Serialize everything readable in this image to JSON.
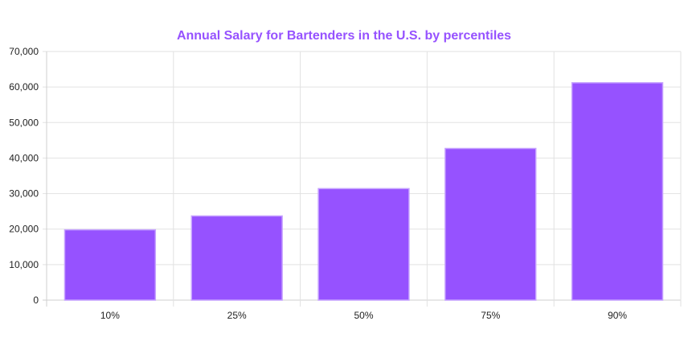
{
  "chart_data": {
    "type": "bar",
    "title": "Annual Salary for Bartenders in the U.S. by percentiles",
    "categories": [
      "10%",
      "25%",
      "50%",
      "75%",
      "90%"
    ],
    "values": [
      19800,
      23700,
      31400,
      42700,
      61200
    ],
    "y_tick_labels": [
      "0",
      "10,000",
      "20,000",
      "30,000",
      "40,000",
      "50,000",
      "60,000",
      "70,000"
    ],
    "ylim": [
      0,
      70000
    ],
    "y_step": 10000,
    "grid": true,
    "legend": "none",
    "colors": {
      "bar_fill": "#9652ff",
      "bar_stroke": "#c6a2ff",
      "title": "#9652ff",
      "grid": "#e2e2e2",
      "axis": "#cfcfcf"
    }
  }
}
